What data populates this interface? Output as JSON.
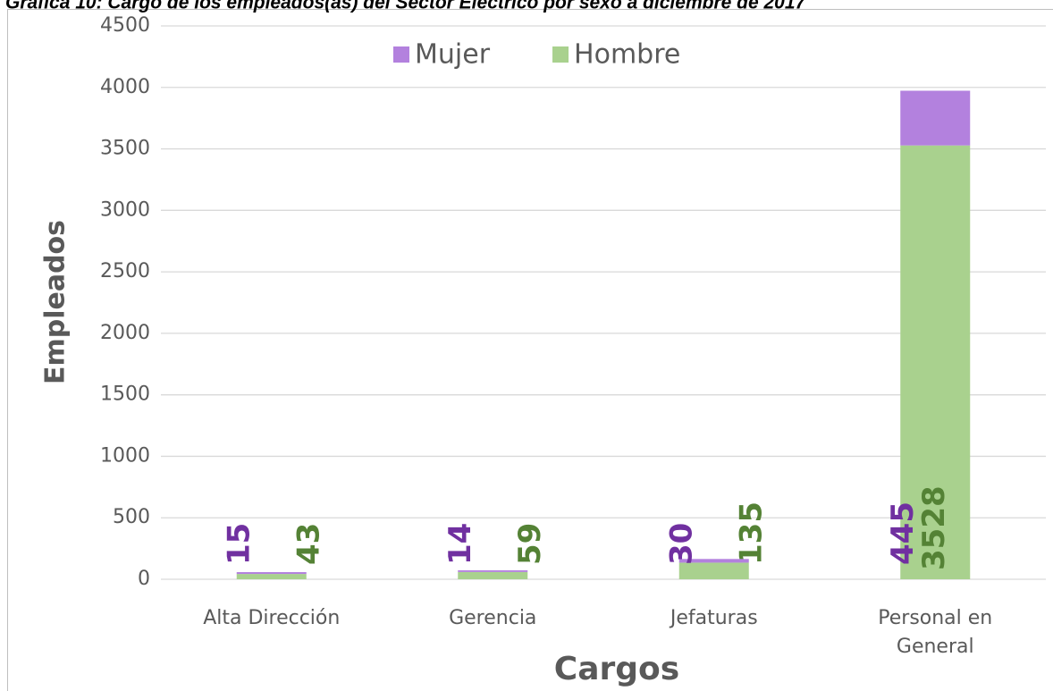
{
  "chart_data": {
    "type": "stacked_bar",
    "title": "Gráfica 10: Cargo de los empleados(as) del Sector Eléctrico por sexo a diciembre de 2017",
    "x_label": "Cargos",
    "y_label": "Empleados",
    "categories": [
      "Alta Dirección",
      "Gerencia",
      "Jefaturas",
      "Personal en General"
    ],
    "series": [
      {
        "name": "Hombre",
        "color": "#a9d18e",
        "label_color": "#548235",
        "values": [
          43,
          59,
          135,
          3528
        ]
      },
      {
        "name": "Mujer",
        "color": "#b381de",
        "label_color": "#7030a0",
        "values": [
          15,
          14,
          30,
          445
        ]
      }
    ],
    "legend_order": [
      1,
      0
    ],
    "ylim": [
      0,
      4500
    ],
    "yticks": [
      0,
      500,
      1000,
      1500,
      2000,
      2500,
      3000,
      3500,
      4000,
      4500
    ],
    "grid": true,
    "legend": "top"
  }
}
